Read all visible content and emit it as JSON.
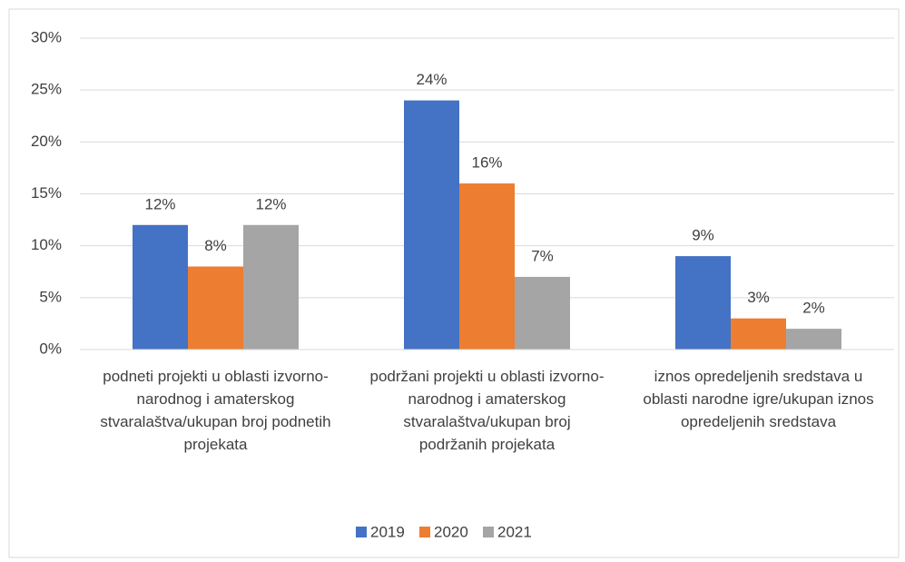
{
  "chart_data": {
    "type": "bar",
    "categories": [
      "podneti projekti u oblasti izvorno-narodnog i amaterskog stvaralaštva/ukupan broj podnetih projekata",
      "podržani projekti u oblasti izvorno-narodnog i amaterskog stvaralaštva/ukupan broj podržanih projekata",
      "iznos opredeljenih sredstava u oblasti narodne igre/ukupan iznos opredeljenih sredstava"
    ],
    "series": [
      {
        "name": "2019",
        "color": "#4472c4",
        "values": [
          12,
          24,
          9
        ],
        "value_labels": [
          "12%",
          "24%",
          "9%"
        ]
      },
      {
        "name": "2020",
        "color": "#ed7d31",
        "values": [
          8,
          16,
          3
        ],
        "value_labels": [
          "8%",
          "16%",
          "3%"
        ]
      },
      {
        "name": "2021",
        "color": "#a5a5a5",
        "values": [
          12,
          7,
          2
        ],
        "value_labels": [
          "12%",
          "7%",
          "2%"
        ]
      }
    ],
    "ylim": [
      0,
      30
    ],
    "yticks": [
      {
        "value": 0,
        "label": "0%"
      },
      {
        "value": 5,
        "label": "5%"
      },
      {
        "value": 10,
        "label": "10%"
      },
      {
        "value": 15,
        "label": "15%"
      },
      {
        "value": 20,
        "label": "20%"
      },
      {
        "value": 25,
        "label": "25%"
      },
      {
        "value": 30,
        "label": "30%"
      }
    ],
    "grid": true,
    "legend": "bottom"
  }
}
